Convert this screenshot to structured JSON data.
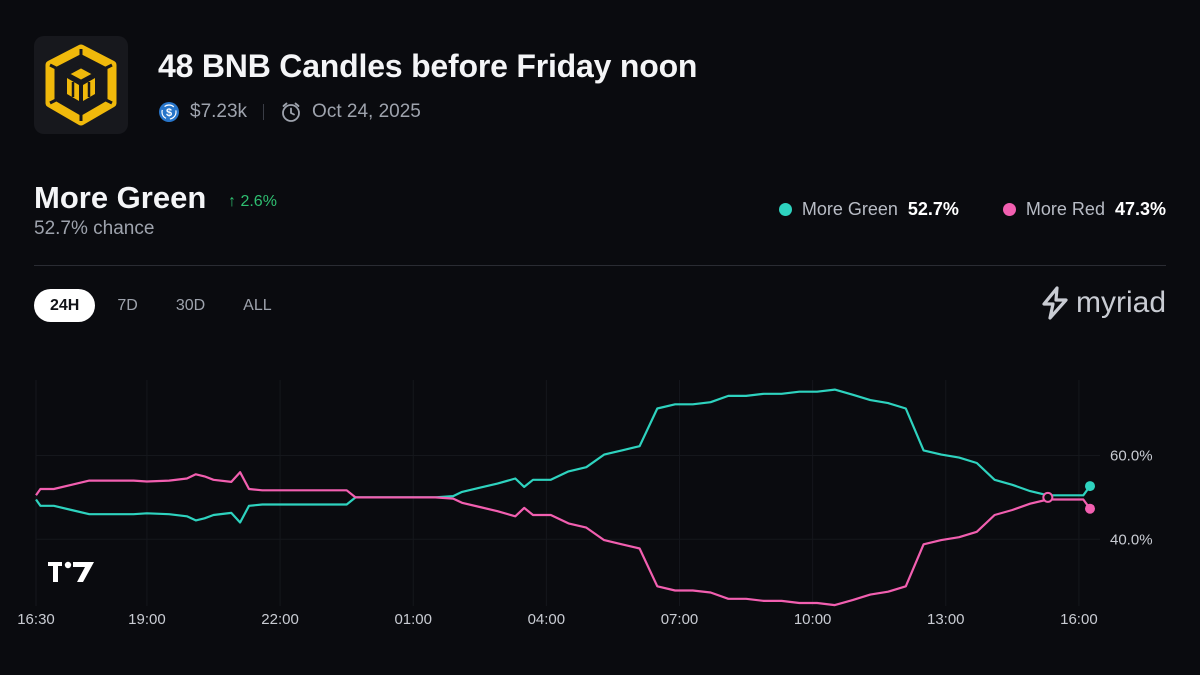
{
  "market": {
    "title": "48 BNB Candles before Friday noon",
    "volume": "$7.23k",
    "end_date": "Oct 24, 2025"
  },
  "outcome": {
    "name": "More Green",
    "change": "2.6%",
    "chance": "52.7% chance"
  },
  "legend": [
    {
      "label": "More Green",
      "value": "52.7%",
      "color": "#2ed3bf"
    },
    {
      "label": "More Red",
      "value": "47.3%",
      "color": "#f25fb0"
    }
  ],
  "tabs": [
    {
      "label": "24H",
      "active": true
    },
    {
      "label": "7D",
      "active": false
    },
    {
      "label": "30D",
      "active": false
    },
    {
      "label": "ALL",
      "active": false
    }
  ],
  "brand": {
    "name": "myriad"
  },
  "chart_data": {
    "type": "line",
    "x_unit": "hours since 16:30",
    "x_ticks": [
      {
        "x": 0,
        "label": "16:30"
      },
      {
        "x": 2.5,
        "label": "19:00"
      },
      {
        "x": 5.5,
        "label": "22:00"
      },
      {
        "x": 8.5,
        "label": "01:00"
      },
      {
        "x": 11.5,
        "label": "04:00"
      },
      {
        "x": 14.5,
        "label": "07:00"
      },
      {
        "x": 17.5,
        "label": "10:00"
      },
      {
        "x": 20.5,
        "label": "13:00"
      },
      {
        "x": 23.5,
        "label": "16:00"
      }
    ],
    "xlim": [
      0,
      23.75
    ],
    "ylim": [
      26,
      78
    ],
    "y_ticks": [
      {
        "y": 60,
        "label": "60.0%"
      },
      {
        "y": 40,
        "label": "40.0%"
      }
    ],
    "series": [
      {
        "name": "More Green",
        "color": "#2ed3bf",
        "x": [
          0,
          0.1,
          0.4,
          0.8,
          1.2,
          1.6,
          2.2,
          2.5,
          3.0,
          3.4,
          3.6,
          3.8,
          4.0,
          4.4,
          4.6,
          4.8,
          5.1,
          5.4,
          5.8,
          6.2,
          6.6,
          7.0,
          7.2,
          7.4,
          7.8,
          8.2,
          8.6,
          9.0,
          9.4,
          9.6,
          10.0,
          10.4,
          10.8,
          11.0,
          11.2,
          11.6,
          12.0,
          12.4,
          12.8,
          13.2,
          13.6,
          14.0,
          14.4,
          14.8,
          15.2,
          15.6,
          16.0,
          16.4,
          16.8,
          17.2,
          17.6,
          18.0,
          18.4,
          18.8,
          19.2,
          19.6,
          20.0,
          20.4,
          20.8,
          21.2,
          21.6,
          22.0,
          22.4,
          22.8,
          23.2,
          23.6,
          23.75
        ],
        "y": [
          49.5,
          48,
          48,
          47,
          46,
          46,
          46,
          46.2,
          46,
          45.5,
          44.5,
          45,
          45.8,
          46.3,
          44,
          48,
          48.3,
          48.3,
          48.3,
          48.3,
          48.3,
          48.3,
          50,
          50,
          50,
          50,
          50,
          50,
          50.3,
          51.3,
          52.3,
          53.3,
          54.5,
          52.5,
          54.2,
          54.2,
          56.2,
          57.2,
          60.2,
          61.2,
          62.2,
          71.2,
          72.2,
          72.2,
          72.7,
          74.2,
          74.2,
          74.7,
          74.7,
          75.2,
          75.2,
          75.7,
          74.5,
          73.2,
          72.5,
          71.2,
          61.2,
          60.2,
          59.5,
          58.2,
          54.2,
          53,
          51.5,
          50.5,
          50.5,
          50.5,
          52.7
        ]
      },
      {
        "name": "More Red",
        "color": "#f25fb0",
        "x": [
          0,
          0.1,
          0.4,
          0.8,
          1.2,
          1.6,
          2.2,
          2.5,
          3.0,
          3.4,
          3.6,
          3.8,
          4.0,
          4.4,
          4.6,
          4.8,
          5.1,
          5.4,
          5.8,
          6.2,
          6.6,
          7.0,
          7.2,
          7.4,
          7.8,
          8.2,
          8.6,
          9.0,
          9.4,
          9.6,
          10.0,
          10.4,
          10.8,
          11.0,
          11.2,
          11.6,
          12.0,
          12.4,
          12.8,
          13.2,
          13.6,
          14.0,
          14.4,
          14.8,
          15.2,
          15.6,
          16.0,
          16.4,
          16.8,
          17.2,
          17.6,
          18.0,
          18.4,
          18.8,
          19.2,
          19.6,
          20.0,
          20.4,
          20.8,
          21.2,
          21.6,
          22.0,
          22.4,
          22.8,
          23.2,
          23.6,
          23.75
        ],
        "y": [
          50.5,
          52,
          52,
          53,
          54,
          54,
          54,
          53.8,
          54,
          54.5,
          55.5,
          55,
          54.2,
          53.7,
          56,
          52,
          51.7,
          51.7,
          51.7,
          51.7,
          51.7,
          51.7,
          50,
          50,
          50,
          50,
          50,
          50,
          49.7,
          48.7,
          47.7,
          46.7,
          45.5,
          47.5,
          45.8,
          45.8,
          43.8,
          42.8,
          39.8,
          38.8,
          37.8,
          28.8,
          27.8,
          27.8,
          27.3,
          25.8,
          25.8,
          25.3,
          25.3,
          24.8,
          24.8,
          24.3,
          25.5,
          26.8,
          27.5,
          28.8,
          38.8,
          39.8,
          40.5,
          41.8,
          45.8,
          47,
          48.5,
          49.5,
          49.5,
          49.5,
          47.3
        ]
      }
    ]
  }
}
